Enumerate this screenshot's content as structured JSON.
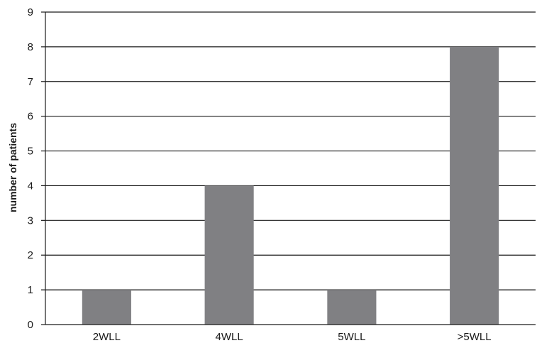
{
  "chart_data": {
    "type": "bar",
    "categories": [
      "2WLL",
      "4WLL",
      "5WLL",
      ">5WLL"
    ],
    "values": [
      1,
      4,
      1,
      8
    ],
    "title": "",
    "xlabel": "",
    "ylabel": "number of patients",
    "ylim": [
      0,
      9
    ],
    "yticks": [
      "0",
      "1",
      "2",
      "3",
      "4",
      "5",
      "6",
      "7",
      "8",
      "9"
    ],
    "grid": true,
    "bar_color": "#808083"
  }
}
